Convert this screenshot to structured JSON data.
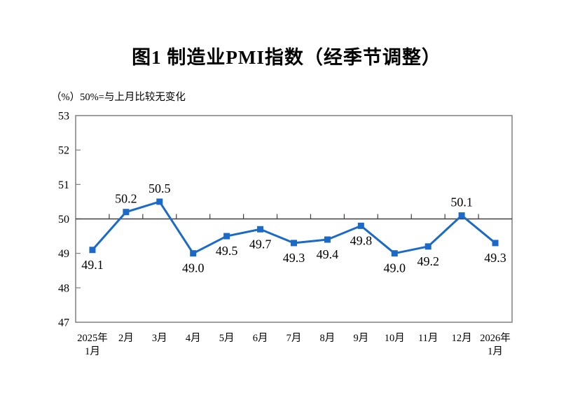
{
  "page": {
    "title": "图1  制造业PMI指数（经季节调整）",
    "y_axis_note": "（%）50%=与上月比较无变化"
  },
  "chart_data": {
    "type": "line",
    "title": "图1  制造业PMI指数（经季节调整）",
    "ylabel_note": "（%）50%=与上月比较无变化",
    "categories": [
      "2025年\n1月",
      "2月",
      "3月",
      "4月",
      "5月",
      "6月",
      "7月",
      "8月",
      "9月",
      "10月",
      "11月",
      "12月",
      "2026年\n1月"
    ],
    "values": [
      49.1,
      50.2,
      50.5,
      49.0,
      49.5,
      49.7,
      49.3,
      49.4,
      49.8,
      49.0,
      49.2,
      50.1,
      49.3
    ],
    "data_labels": [
      "49.1",
      "50.2",
      "50.5",
      "49.0",
      "49.5",
      "49.7",
      "49.3",
      "49.4",
      "49.8",
      "49.0",
      "49.2",
      "50.1",
      "49.3"
    ],
    "ylim": [
      47,
      53
    ],
    "yticks": [
      47,
      48,
      49,
      50,
      51,
      52,
      53
    ],
    "reference_line": 50,
    "grid": false,
    "legend": "none",
    "marker": "square"
  },
  "colors": {
    "line": "#1b6ac9",
    "axis": "#7f7f7f",
    "ref_line": "#404040",
    "text": "#000000"
  }
}
